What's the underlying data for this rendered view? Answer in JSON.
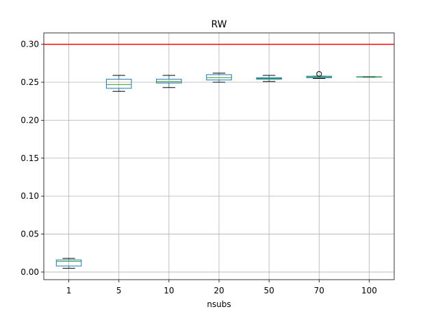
{
  "chart_data": {
    "type": "box",
    "title": "RW",
    "xlabel": "nsubs",
    "ylabel": "",
    "categories": [
      "1",
      "5",
      "10",
      "20",
      "50",
      "70",
      "100"
    ],
    "ylim": [
      -0.01,
      0.315
    ],
    "yticks": [
      0.0,
      0.05,
      0.1,
      0.15,
      0.2,
      0.25,
      0.3
    ],
    "ytick_labels": [
      "0.00",
      "0.05",
      "0.10",
      "0.15",
      "0.20",
      "0.25",
      "0.30"
    ],
    "grid": true,
    "boxes": [
      {
        "whisker_low": 0.005,
        "q1": 0.008,
        "median": 0.014,
        "q3": 0.016,
        "whisker_high": 0.018,
        "outliers": []
      },
      {
        "whisker_low": 0.238,
        "q1": 0.242,
        "median": 0.247,
        "q3": 0.254,
        "whisker_high": 0.259,
        "outliers": []
      },
      {
        "whisker_low": 0.243,
        "q1": 0.249,
        "median": 0.251,
        "q3": 0.254,
        "whisker_high": 0.259,
        "outliers": []
      },
      {
        "whisker_low": 0.25,
        "q1": 0.253,
        "median": 0.256,
        "q3": 0.26,
        "whisker_high": 0.262,
        "outliers": []
      },
      {
        "whisker_low": 0.251,
        "q1": 0.254,
        "median": 0.255,
        "q3": 0.256,
        "whisker_high": 0.259,
        "outliers": []
      },
      {
        "whisker_low": 0.255,
        "q1": 0.256,
        "median": 0.257,
        "q3": 0.258,
        "whisker_high": 0.258,
        "outliers": [
          0.261
        ]
      },
      {
        "whisker_low": 0.2565,
        "q1": 0.2568,
        "median": 0.257,
        "q3": 0.2572,
        "whisker_high": 0.2575,
        "outliers": []
      }
    ],
    "reference_line": {
      "y": 0.3,
      "color": "#ff0000"
    },
    "colors": {
      "box": "#1f77b4",
      "median": "#2ca02c",
      "whisker": "#000000",
      "grid": "#b0b0b0"
    }
  }
}
